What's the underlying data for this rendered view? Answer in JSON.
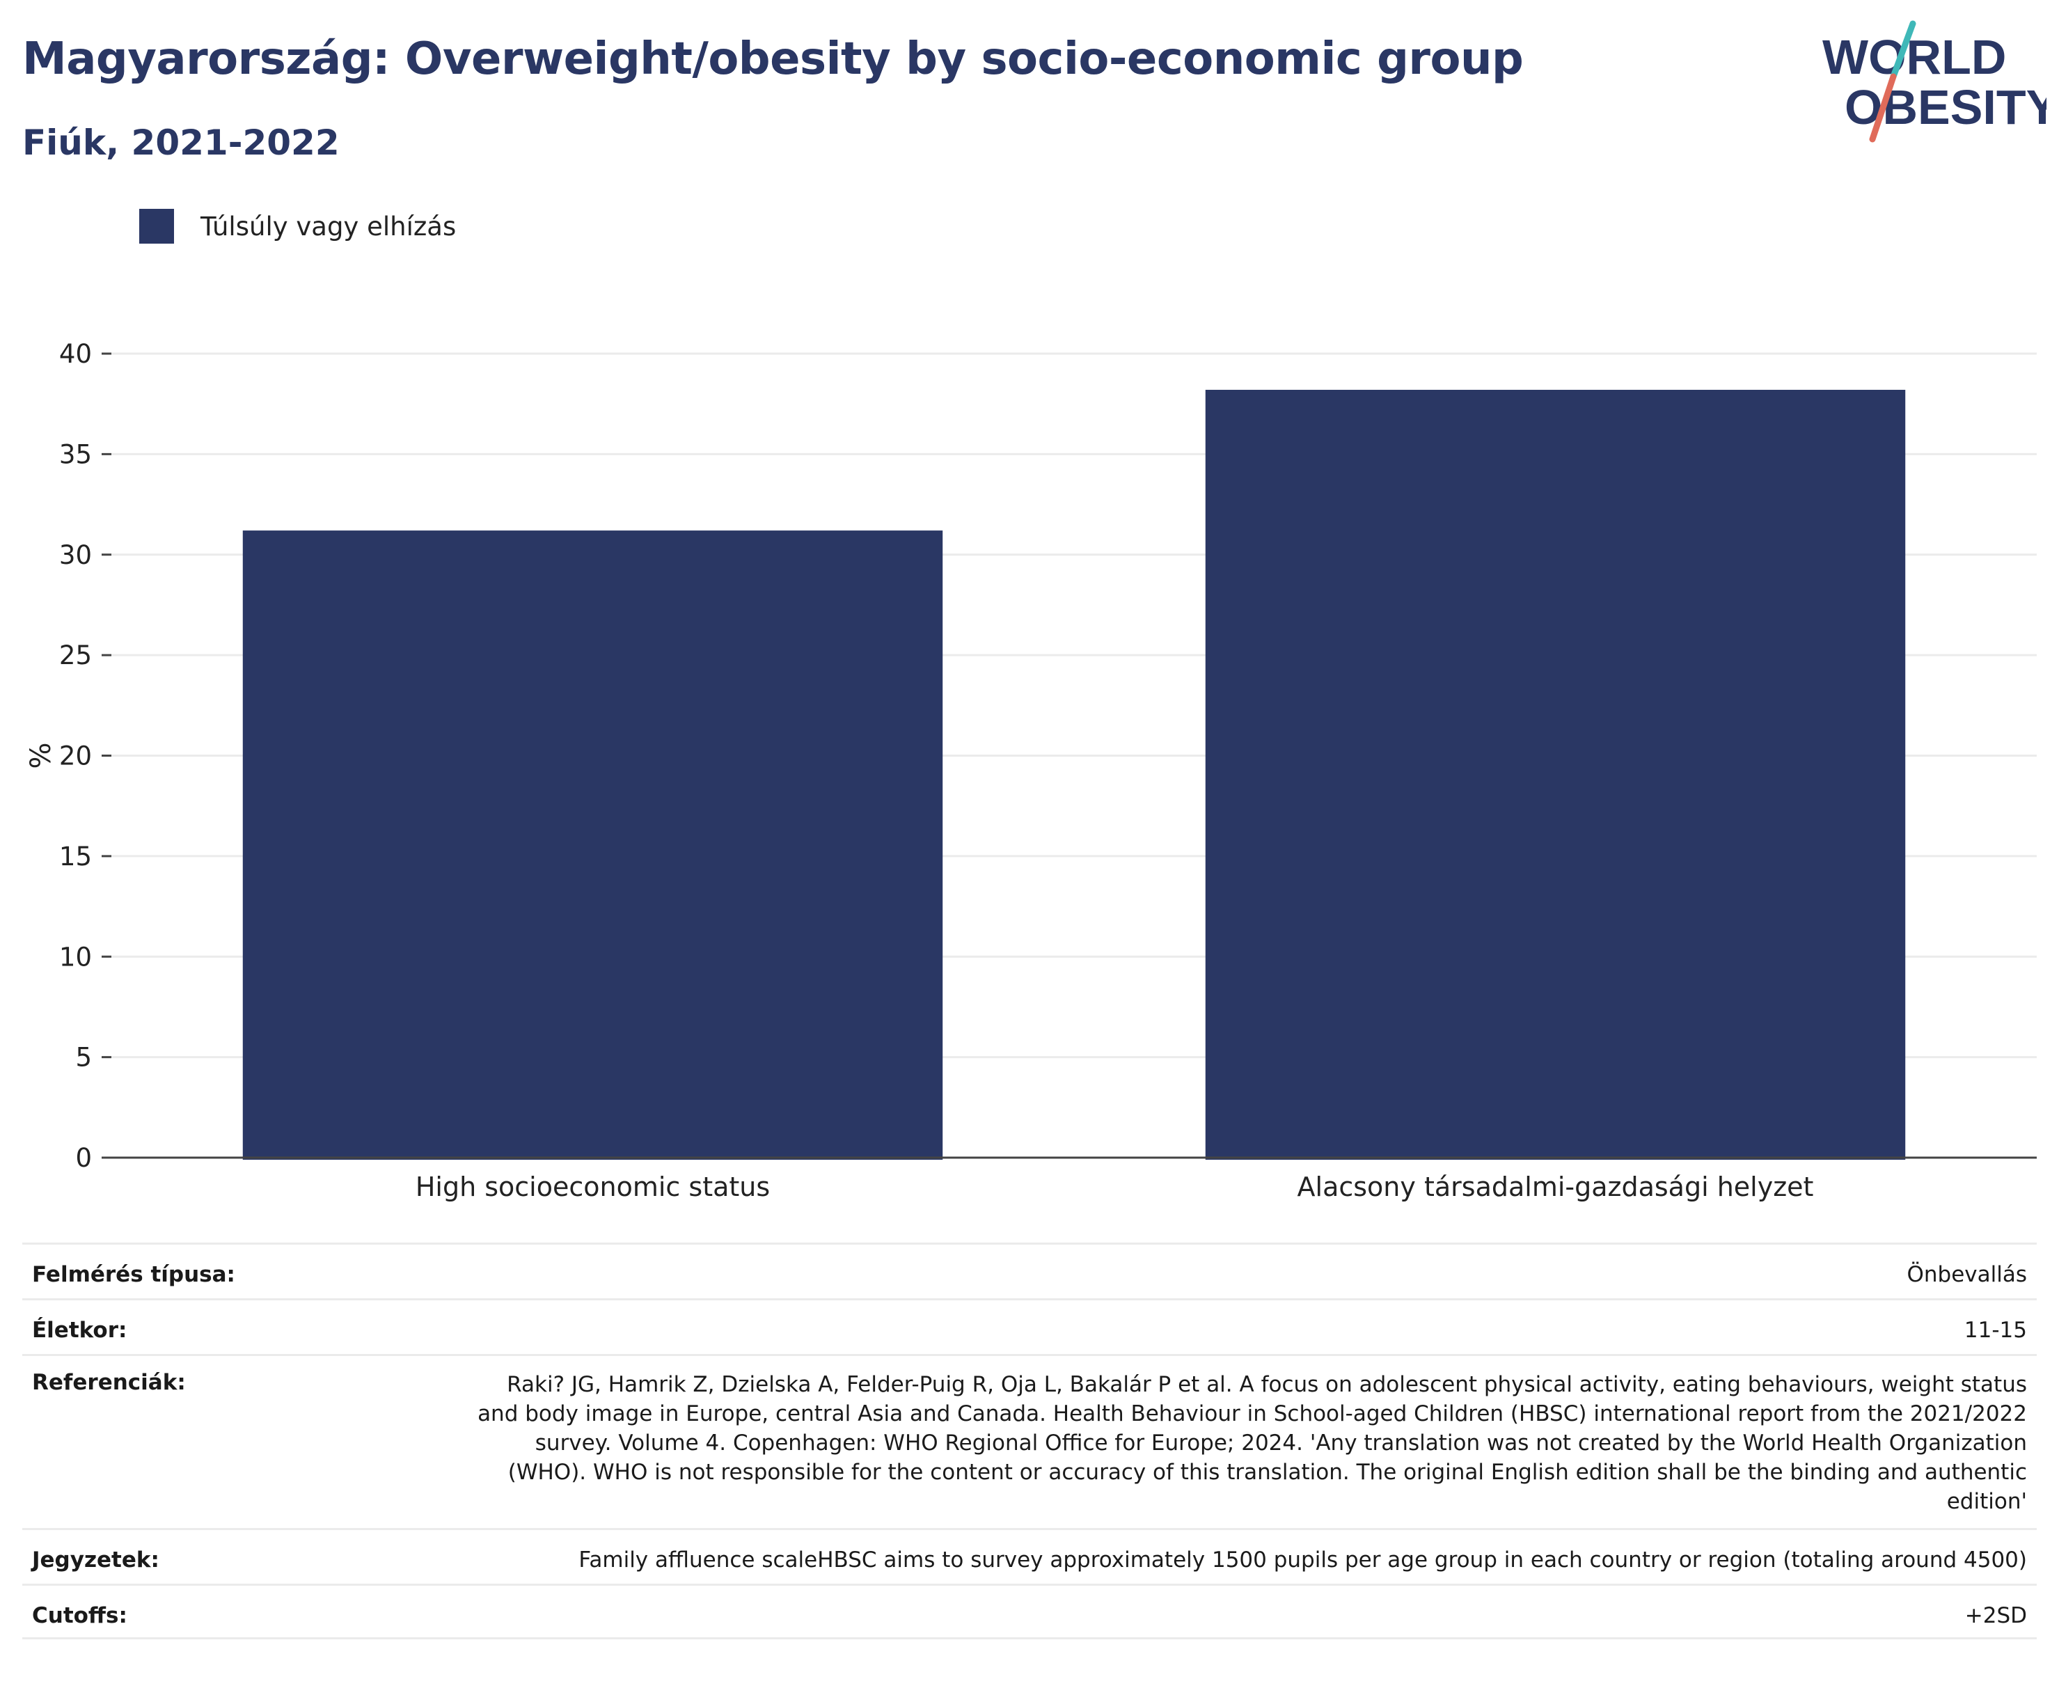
{
  "header": {
    "title": "Magyarország: Overweight/obesity by socio-economic group",
    "subtitle": "Fiúk, 2021-2022"
  },
  "logo": {
    "line1": "WORLD",
    "line2": "OBESITY",
    "colors": {
      "text": "#2a3764",
      "slash_top": "#3fb8b8",
      "slash_bottom": "#e06b5a"
    }
  },
  "legend": {
    "label": "Túlsúly vagy elhízás",
    "color": "#2a3764"
  },
  "chart_data": {
    "type": "bar",
    "categories": [
      "High socioeconomic status",
      "Alacsony társadalmi-gazdasági helyzet"
    ],
    "series": [
      {
        "name": "Túlsúly vagy elhízás",
        "values": [
          31.2,
          38.2
        ],
        "color": "#2a3764"
      }
    ],
    "ylabel": "%",
    "ylim": [
      0,
      40
    ],
    "yticks": [
      0,
      5,
      10,
      15,
      20,
      25,
      30,
      35,
      40
    ],
    "grid": true,
    "legend_position": "top-left"
  },
  "meta": {
    "rows": [
      {
        "key": "Felmérés típusa:",
        "value": "Önbevallás"
      },
      {
        "key": "Életkor:",
        "value": "11-15"
      },
      {
        "key": "Referenciák:",
        "value": "Raki? JG, Hamrik Z, Dzielska A, Felder-Puig R, Oja L, Bakalár P et al. A focus on adolescent physical activity, eating behaviours, weight status and body image in Europe, central Asia and Canada. Health Behaviour in School-aged Children (HBSC) international report from the 2021/2022 survey. Volume 4. Copenhagen: WHO Regional Office for Europe; 2024. 'Any translation was not created by the World Health Organization (WHO). WHO is not responsible for the content or accuracy of this translation. The original English edition shall be the binding and authentic edition'"
      },
      {
        "key": "Jegyzetek:",
        "value": "Family affluence scaleHBSC aims to survey approximately 1500 pupils per age group in each country or region (totaling around 4500)"
      },
      {
        "key": "Cutoffs:",
        "value": "+2SD"
      }
    ]
  }
}
